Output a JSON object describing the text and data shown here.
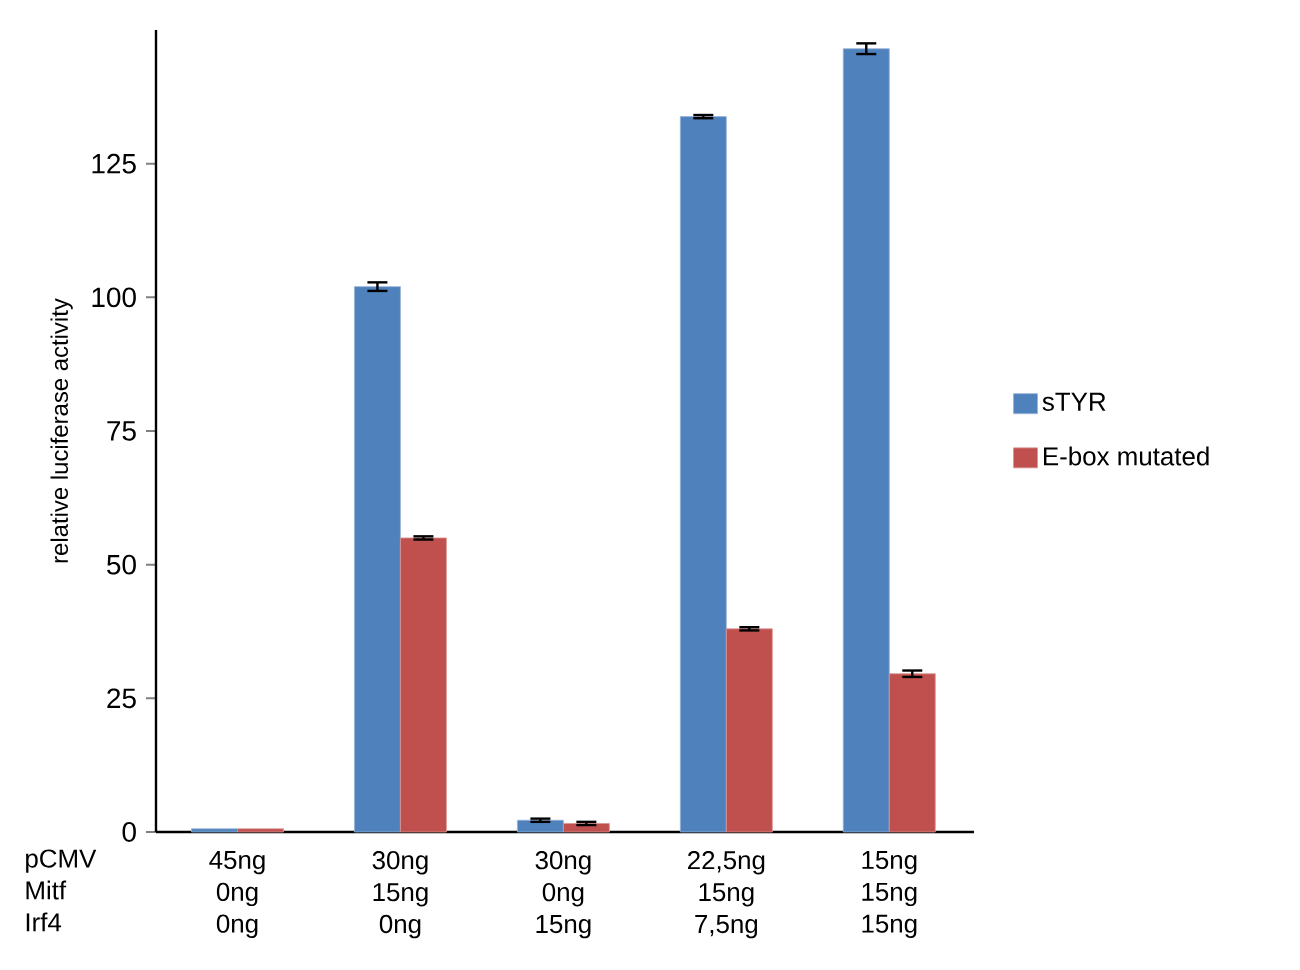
{
  "chart_data": {
    "type": "bar",
    "ylabel": "relative luciferase activity",
    "categories": [
      "45ng\n0ng\n0ng",
      "30ng\n15ng\n0ng",
      "30ng\n0ng\n15ng",
      "22,5ng\n15ng\n7,5ng",
      "15ng\n15ng\n15ng"
    ],
    "series": [
      {
        "name": "sTYR",
        "color": "#4f81bd",
        "values": [
          0.6,
          102,
          2.2,
          133.8,
          146.5
        ],
        "errors": [
          null,
          0.8,
          0.3,
          0.3,
          1
        ]
      },
      {
        "name": "E-box mutated",
        "color": "#c0504d",
        "values": [
          0.6,
          55,
          1.6,
          38,
          29.6
        ],
        "errors": [
          null,
          0.3,
          0.3,
          0.3,
          0.6
        ]
      }
    ],
    "ylim": [
      0,
      150
    ],
    "yticks": [
      0,
      25,
      50,
      75,
      100,
      125
    ],
    "legend": "right",
    "annotations": [
      "pCMV",
      "Mitf",
      "Irf4"
    ]
  }
}
